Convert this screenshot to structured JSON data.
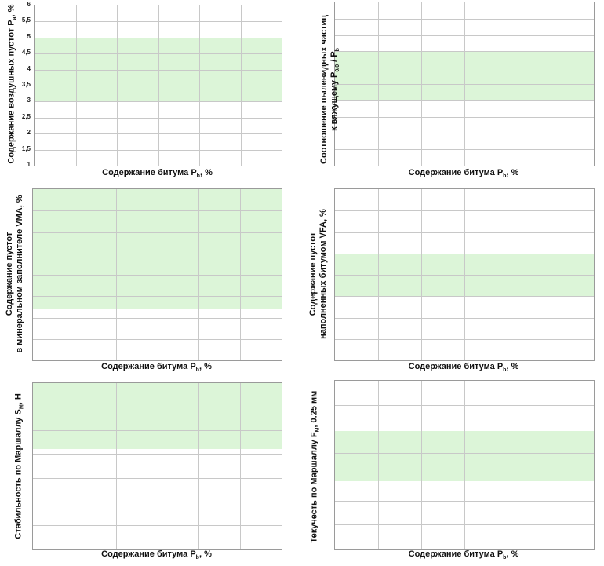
{
  "charts": [
    {
      "id": "air-voids",
      "ylabel_lines": [
        "Содержание воздушных пустот P",
        "а",
        ", %"
      ],
      "xlabel": [
        "Содержание битума P",
        "b",
        ", %"
      ],
      "yticks": [
        "6",
        "5,5",
        "5",
        "4,5",
        "4",
        "3,5",
        "3",
        "2,5",
        "2",
        "1,5",
        "1"
      ],
      "ylim": [
        1,
        6
      ],
      "band": [
        3,
        5
      ],
      "grid_rows": 10,
      "grid_cols": 6
    },
    {
      "id": "dust-binder",
      "ylabel_line1": "Соотношение пылевидных частиц",
      "ylabel_line2": [
        "к вяжущему P",
        "0/0",
        " / P",
        "b"
      ],
      "xlabel": [
        "Содержание битума P",
        "b",
        ", %"
      ],
      "band_frac": [
        0.3,
        0.6
      ],
      "grid_rows": 10,
      "grid_cols": 6
    },
    {
      "id": "vma",
      "ylabel_line1": "Содержание пустот",
      "ylabel_line2": "в минеральном заполнителе VMA, %",
      "xlabel": [
        "Содержание битума P",
        "b",
        ", %"
      ],
      "band_frac": [
        0.0,
        0.7
      ],
      "grid_rows": 8,
      "grid_cols": 6
    },
    {
      "id": "vfa",
      "ylabel_line1": "Содержание пустот",
      "ylabel_line2": "наполненных битумом VFA, %",
      "xlabel": [
        "Содержание битума P",
        "b",
        ", %"
      ],
      "band_frac": [
        0.375,
        0.625
      ],
      "grid_rows": 8,
      "grid_cols": 6
    },
    {
      "id": "stability",
      "ylabel_lines": [
        "Стабильность по Маршаллу S",
        "M",
        ", Н"
      ],
      "xlabel": [
        "Содержание битума P",
        "b",
        ", %"
      ],
      "band_frac": [
        0.0,
        0.4
      ],
      "grid_rows": 7,
      "grid_cols": 6
    },
    {
      "id": "flow",
      "ylabel_lines": [
        "Текучесть по Маршаллу F",
        "M",
        ",  0.25 мм"
      ],
      "xlabel": [
        "Содержание битума P",
        "b",
        ", %"
      ],
      "band_frac": [
        0.3,
        0.6
      ],
      "grid_rows": 7,
      "grid_cols": 6
    }
  ],
  "chart_data": [
    {
      "type": "line",
      "ylabel": "Содержание воздушных пустот Pа, %",
      "xlabel": "Содержание битума Pb, %",
      "ylim": [
        1,
        6
      ],
      "yticks": [
        6,
        5.5,
        5,
        4.5,
        4,
        3.5,
        3,
        2.5,
        2,
        1.5,
        1
      ],
      "target_band": [
        3,
        5
      ],
      "grid": true,
      "series": []
    },
    {
      "type": "line",
      "ylabel": "Соотношение пылевидных частиц к вяжущему P0/0 / Pb",
      "xlabel": "Содержание битума Pb, %",
      "grid": true,
      "series": []
    },
    {
      "type": "line",
      "ylabel": "Содержание пустот в минеральном заполнителе VMA, %",
      "xlabel": "Содержание битума Pb, %",
      "grid": true,
      "series": []
    },
    {
      "type": "line",
      "ylabel": "Содержание пустот наполненных битумом VFA, %",
      "xlabel": "Содержание битума Pb, %",
      "grid": true,
      "series": []
    },
    {
      "type": "line",
      "ylabel": "Стабильность по Маршаллу SM, Н",
      "xlabel": "Содержание битума Pb, %",
      "grid": true,
      "series": []
    },
    {
      "type": "line",
      "ylabel": "Текучесть по Маршаллу FM, 0.25 мм",
      "xlabel": "Содержание битума Pb, %",
      "grid": true,
      "series": []
    }
  ]
}
